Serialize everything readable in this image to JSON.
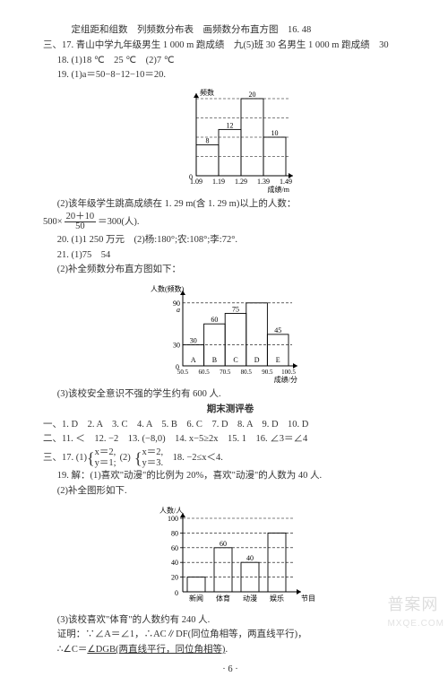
{
  "p1": "定组距和组数　列频数分布表　画频数分布直方图　16. 48",
  "p2": "三、17. 青山中学九年级男生 1 000 m 跑成绩　九(5)班 30 名男生 1 000 m 跑成绩　30",
  "p3": "18. (1)18 ℃　25 ℃　(2)7 ℃",
  "p4": "19. (1)a＝50−8−12−10＝20.",
  "chart1": {
    "ylabel": "频数",
    "xlabel": "成绩/m",
    "xticks": [
      "1.09",
      "1.19",
      "1.29",
      "1.39",
      "1.49"
    ],
    "grid_y": [
      5,
      10,
      15,
      20
    ],
    "bars": [
      {
        "v": 8,
        "label": "8"
      },
      {
        "v": 12,
        "label": "12"
      },
      {
        "v": 20,
        "label": "20"
      },
      {
        "v": 10,
        "label": "10"
      }
    ],
    "axis_color": "#000000",
    "bar_stroke": "#000000",
    "grid_color": "#000000",
    "bg": "#ffffff",
    "font_size": 8
  },
  "p5": "(2)该年级学生跳高成绩在 1. 29 m(含 1. 29 m)以上的人数：",
  "p6_a": "500×",
  "p6_num": "20＋10",
  "p6_den": "50",
  "p6_b": "＝300(人).",
  "p7": "20. (1)1 250 万元　(2)杨:180°;农:108°;李:72°.",
  "p8": "21. (1)75　54",
  "p9": "(2)补全频数分布直方图如下：",
  "chart2": {
    "ylabel": "人数(频数)",
    "xlabel": "成绩/分",
    "xticks": [
      "50.5",
      "60.5",
      "70.5",
      "80.5",
      "90.5",
      "100.5"
    ],
    "yticks": [
      30,
      90
    ],
    "special_label": "a",
    "bars": [
      {
        "v": 30,
        "label": "A",
        "top": "30"
      },
      {
        "v": 60,
        "label": "B",
        "top": "60"
      },
      {
        "v": 75,
        "label": "C",
        "top": "75"
      },
      {
        "v": 90,
        "label": "D",
        "top": ""
      },
      {
        "v": 45,
        "label": "E",
        "top": "45"
      }
    ],
    "axis_color": "#000000",
    "bar_stroke": "#000000",
    "grid_color": "#000000",
    "bg": "#ffffff",
    "font_size": 8
  },
  "p10": "(3)该校安全意识不强的学生约有 600 人.",
  "hdr": "期末测评卷",
  "p11": "一、1. D　2. A　3. C　4. A　5. B　6. C　7. D　8. A　9. D　10. D",
  "p12": "二、11. ＜　12. −2　13. (−8,0)　14. x−5≥2x　15. 1　16. ∠3＝∠4",
  "p13a": "三、17. (1)",
  "p13sys1_l1": "x＝2,",
  "p13sys1_l2": "y＝1;",
  "p13mid": "(2)",
  "p13sys2_l1": "x＝2,",
  "p13sys2_l2": "y＝3.",
  "p13b": "　18. −2≤x＜4.",
  "p14": "19. 解：(1)喜欢\"动漫\"的比例为 20%，喜欢\"动漫\"的人数为 40 人.",
  "p15": "(2)补全图形如下.",
  "chart3": {
    "ylabel": "人数/人",
    "xlabel": "节目类型",
    "xticks": [
      "新闻",
      "体育",
      "动漫",
      "娱乐"
    ],
    "yticks": [
      20,
      40,
      60,
      80,
      100
    ],
    "bars": [
      {
        "v": 20,
        "label": ""
      },
      {
        "v": 60,
        "label": "60"
      },
      {
        "v": 40,
        "label": "40"
      },
      {
        "v": 80,
        "label": ""
      }
    ],
    "axis_color": "#000000",
    "bar_stroke": "#000000",
    "grid_color": "#000000",
    "bg": "#ffffff",
    "font_size": 8
  },
  "p16": "(3)该校喜欢\"体育\"的人数约有 240 人.",
  "p17": "证明：∵∠A＝∠1，∴AC∥DF(同位角相等，两直线平行)，",
  "p18a": "∴∠C＝",
  "p18u": "∠DGB(两直线平行，同位角相等)",
  "p18b": ".",
  "pgnum": "· 6 ·",
  "wm_top": "普案网",
  "wm_sub": "MXQE.COM"
}
